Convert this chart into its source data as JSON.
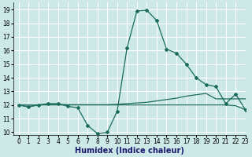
{
  "xlabel": "Humidex (Indice chaleur)",
  "xlim": [
    -0.5,
    23
  ],
  "ylim": [
    9.8,
    19.5
  ],
  "yticks": [
    10,
    11,
    12,
    13,
    14,
    15,
    16,
    17,
    18,
    19
  ],
  "xticks": [
    0,
    1,
    2,
    3,
    4,
    5,
    6,
    7,
    8,
    9,
    10,
    11,
    12,
    13,
    14,
    15,
    16,
    17,
    18,
    19,
    20,
    21,
    22,
    23
  ],
  "bg_color": "#cce9e7",
  "grid_color": "#ffffff",
  "line_color": "#1a6b5e",
  "line1_x": [
    0,
    1,
    2,
    3,
    4,
    5,
    6,
    7,
    8,
    9,
    10,
    11,
    12,
    13,
    14,
    15,
    16,
    17,
    18,
    19,
    20,
    21,
    22,
    23
  ],
  "line1_y": [
    12.0,
    11.85,
    12.0,
    12.1,
    12.1,
    11.9,
    11.8,
    10.5,
    9.9,
    10.0,
    11.55,
    16.2,
    18.9,
    18.95,
    18.2,
    16.1,
    15.8,
    15.0,
    14.0,
    13.5,
    13.35,
    12.1,
    12.8,
    11.65
  ],
  "line2_x": [
    0,
    1,
    2,
    3,
    4,
    5,
    6,
    7,
    8,
    9,
    10,
    11,
    12,
    13,
    14,
    15,
    16,
    17,
    18,
    19,
    20,
    21,
    22,
    23
  ],
  "line2_y": [
    12.0,
    12.0,
    12.0,
    12.05,
    12.05,
    12.02,
    12.02,
    12.02,
    12.02,
    12.02,
    12.05,
    12.1,
    12.15,
    12.2,
    12.3,
    12.4,
    12.5,
    12.65,
    12.75,
    12.85,
    12.45,
    12.45,
    12.45,
    12.45
  ],
  "line3_x": [
    0,
    1,
    2,
    3,
    4,
    5,
    6,
    7,
    8,
    9,
    10,
    11,
    12,
    13,
    14,
    15,
    16,
    17,
    18,
    19,
    20,
    21,
    22,
    23
  ],
  "line3_y": [
    12.0,
    11.9,
    12.0,
    12.0,
    12.0,
    12.0,
    12.0,
    12.0,
    12.0,
    12.0,
    12.0,
    12.0,
    12.0,
    12.0,
    12.0,
    12.0,
    12.0,
    12.0,
    12.0,
    12.0,
    12.0,
    12.0,
    11.95,
    11.65
  ],
  "xlabel_color": "#1a1a6e",
  "xlabel_fontsize": 7,
  "tick_fontsize": 5.5
}
